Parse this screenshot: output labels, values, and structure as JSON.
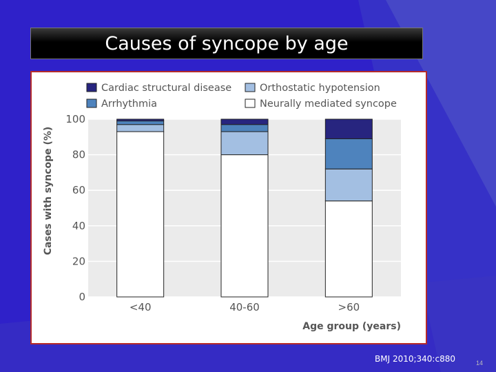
{
  "slide": {
    "title": "Causes of syncope by age",
    "citation": "BMJ 2010;340:c880",
    "slide_number": "14"
  },
  "colors": {
    "background": "#2f21c9",
    "cardiac": "#27257f",
    "arrhythmia": "#4e83bd",
    "orthostatic": "#a3bfe2",
    "neurally": "#ffffff",
    "plot_bg": "#ebebeb",
    "axis_text": "#555555"
  },
  "chart_data": {
    "type": "bar",
    "stacked": true,
    "categories": [
      "<40",
      "40-60",
      ">60"
    ],
    "series": [
      {
        "name": "Neurally mediated syncope",
        "color_key": "neurally",
        "values": [
          93,
          80,
          54
        ]
      },
      {
        "name": "Orthostatic hypotension",
        "color_key": "orthostatic",
        "values": [
          4,
          13,
          18
        ]
      },
      {
        "name": "Arrhythmia",
        "color_key": "arrhythmia",
        "values": [
          2,
          4,
          17
        ]
      },
      {
        "name": "Cardiac structural disease",
        "color_key": "cardiac",
        "values": [
          1,
          3,
          11
        ]
      }
    ],
    "legend_order": [
      "Cardiac structural disease",
      "Orthostatic hypotension",
      "Arrhythmia",
      "Neurally mediated syncope"
    ],
    "xlabel": "Age group (years)",
    "ylabel": "Cases with syncope (%)",
    "ylim": [
      0,
      100
    ],
    "yticks": [
      0,
      20,
      40,
      60,
      80,
      100
    ],
    "grid": true,
    "legend_position": "top"
  }
}
